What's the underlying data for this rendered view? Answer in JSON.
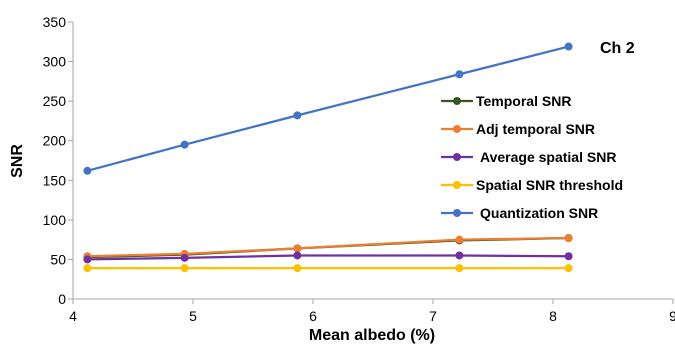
{
  "chart_data": {
    "type": "line",
    "title": "",
    "annotation": "Ch 2",
    "xlabel": "Mean albedo (%)",
    "ylabel": "SNR",
    "xlim": [
      4,
      9
    ],
    "ylim": [
      0,
      350
    ],
    "xticks": [
      "4",
      "5",
      "6",
      "7",
      "8",
      "9"
    ],
    "yticks": [
      "0",
      "50",
      "100",
      "150",
      "200",
      "250",
      "300",
      "350"
    ],
    "grid": false,
    "legend_position": "right",
    "x": [
      4.12,
      4.93,
      5.87,
      7.22,
      8.13
    ],
    "series": [
      {
        "name": "Temporal SNR",
        "color": "#375623",
        "values": [
          53,
          56,
          64,
          74,
          77
        ]
      },
      {
        "name": "Adj temporal SNR",
        "color": "#ED7D31",
        "values": [
          54,
          57,
          64,
          75,
          77
        ]
      },
      {
        "name": "Average spatial SNR",
        "color": "#7030A0",
        "values": [
          50,
          52,
          55,
          55,
          54
        ]
      },
      {
        "name": "Spatial SNR threshold",
        "color": "#FFC000",
        "values": [
          39,
          39,
          39,
          39,
          39
        ]
      },
      {
        "name": "Quantization SNR",
        "color": "#4472C4",
        "values": [
          162,
          195,
          232,
          284,
          319
        ]
      }
    ]
  }
}
